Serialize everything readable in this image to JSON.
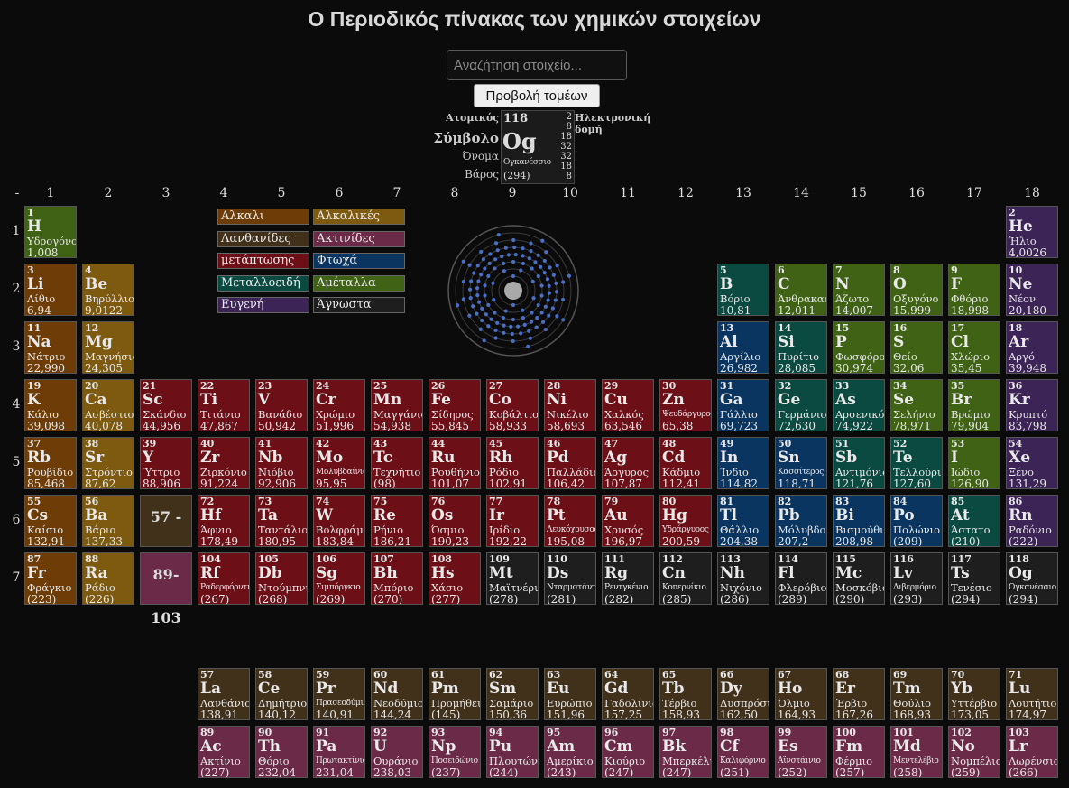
{
  "page_title": "Ο Περιοδικός πίνακας των χημικών στοιχείων",
  "search": {
    "placeholder": "Αναζήτηση στοιχείο..."
  },
  "sectors_button": "Προβολή τομέων",
  "key": {
    "label_atomic": "Ατομικός",
    "label_symbol": "Σύμβολο",
    "label_name": "Όνομα",
    "label_weight": "Βάρος",
    "label_config": "Ηλεκτρονική δομή",
    "example": {
      "number": "118",
      "symbol": "Og",
      "name": "Ογκανέσσιο",
      "weight": "(294)",
      "shells": [
        "2",
        "8",
        "18",
        "32",
        "32",
        "18",
        "8"
      ]
    }
  },
  "group_labels": [
    "-",
    "1",
    "2",
    "3",
    "4",
    "5",
    "6",
    "7",
    "8",
    "9",
    "10",
    "11",
    "12",
    "13",
    "14",
    "15",
    "16",
    "17",
    "18"
  ],
  "period_labels": [
    "1",
    "2",
    "3",
    "4",
    "5",
    "6",
    "7"
  ],
  "placeholders": {
    "lanthanides": "57 - 71",
    "actinides": "89-103"
  },
  "colors": {
    "alkali": "#6e3d07",
    "alkaline": "#7d5a10",
    "lanthanide": "#41311b",
    "actinide": "#6b2a48",
    "transition": "#6c0f17",
    "post": "#0a3560",
    "metalloid": "#0b4a41",
    "nonmetal": "#3f6214",
    "noble": "#3d2457",
    "unknown": "#1e1e1e"
  },
  "legend": [
    {
      "key": "alkali",
      "label": "Αλκαλι"
    },
    {
      "key": "alkaline",
      "label": "Αλκαλικές"
    },
    {
      "key": "lanthanide",
      "label": "Λανθανίδες"
    },
    {
      "key": "actinide",
      "label": "Ακτινίδες"
    },
    {
      "key": "transition",
      "label": "μετάπτωσης"
    },
    {
      "key": "post",
      "label": "Φτωχά"
    },
    {
      "key": "metalloid",
      "label": "Μεταλλοειδή"
    },
    {
      "key": "nonmetal",
      "label": "Αμέταλλα"
    },
    {
      "key": "noble",
      "label": "Ευγενή"
    },
    {
      "key": "unknown",
      "label": "Άγνωστα"
    }
  ],
  "elements": [
    {
      "n": "1",
      "s": "H",
      "name": "Υδρογόνο",
      "w": "1,008",
      "cat": "nonmetal"
    },
    {
      "n": "2",
      "s": "He",
      "name": "Ήλιο",
      "w": "4,0026",
      "cat": "noble"
    },
    {
      "n": "3",
      "s": "Li",
      "name": "Λίθιο",
      "w": "6,94",
      "cat": "alkali"
    },
    {
      "n": "4",
      "s": "Be",
      "name": "Βηρύλλιο",
      "w": "9,0122",
      "cat": "alkaline"
    },
    {
      "n": "5",
      "s": "B",
      "name": "Βόριο",
      "w": "10,81",
      "cat": "metalloid"
    },
    {
      "n": "6",
      "s": "C",
      "name": "Άνθρακας",
      "w": "12,011",
      "cat": "nonmetal"
    },
    {
      "n": "7",
      "s": "N",
      "name": "Άζωτο",
      "w": "14,007",
      "cat": "nonmetal"
    },
    {
      "n": "8",
      "s": "O",
      "name": "Οξυγόνο",
      "w": "15,999",
      "cat": "nonmetal"
    },
    {
      "n": "9",
      "s": "F",
      "name": "Φθόριο",
      "w": "18,998",
      "cat": "nonmetal"
    },
    {
      "n": "10",
      "s": "Ne",
      "name": "Νέον",
      "w": "20,180",
      "cat": "noble"
    },
    {
      "n": "11",
      "s": "Na",
      "name": "Νάτριο",
      "w": "22,990",
      "cat": "alkali"
    },
    {
      "n": "12",
      "s": "Mg",
      "name": "Μαγνήσιο",
      "w": "24,305",
      "cat": "alkaline"
    },
    {
      "n": "13",
      "s": "Al",
      "name": "Αργίλιο",
      "w": "26,982",
      "cat": "post"
    },
    {
      "n": "14",
      "s": "Si",
      "name": "Πυρίτιο",
      "w": "28,085",
      "cat": "metalloid"
    },
    {
      "n": "15",
      "s": "P",
      "name": "Φωσφόρος",
      "w": "30,974",
      "cat": "nonmetal"
    },
    {
      "n": "16",
      "s": "S",
      "name": "Θείο",
      "w": "32,06",
      "cat": "nonmetal"
    },
    {
      "n": "17",
      "s": "Cl",
      "name": "Χλώριο",
      "w": "35,45",
      "cat": "nonmetal"
    },
    {
      "n": "18",
      "s": "Ar",
      "name": "Αργό",
      "w": "39,948",
      "cat": "noble"
    },
    {
      "n": "19",
      "s": "K",
      "name": "Κάλιο",
      "w": "39,098",
      "cat": "alkali"
    },
    {
      "n": "20",
      "s": "Ca",
      "name": "Ασβέστιο",
      "w": "40,078",
      "cat": "alkaline"
    },
    {
      "n": "21",
      "s": "Sc",
      "name": "Σκάνδιο",
      "w": "44,956",
      "cat": "transition"
    },
    {
      "n": "22",
      "s": "Ti",
      "name": "Τιτάνιο",
      "w": "47,867",
      "cat": "transition"
    },
    {
      "n": "23",
      "s": "V",
      "name": "Βανάδιο",
      "w": "50,942",
      "cat": "transition"
    },
    {
      "n": "24",
      "s": "Cr",
      "name": "Χρώμιο",
      "w": "51,996",
      "cat": "transition"
    },
    {
      "n": "25",
      "s": "Mn",
      "name": "Μαγγάνιο",
      "w": "54,938",
      "cat": "transition"
    },
    {
      "n": "26",
      "s": "Fe",
      "name": "Σίδηρος",
      "w": "55,845",
      "cat": "transition"
    },
    {
      "n": "27",
      "s": "Co",
      "name": "Κοβάλτιο",
      "w": "58,933",
      "cat": "transition"
    },
    {
      "n": "28",
      "s": "Ni",
      "name": "Νικέλιο",
      "w": "58,693",
      "cat": "transition"
    },
    {
      "n": "29",
      "s": "Cu",
      "name": "Χαλκός",
      "w": "63,546",
      "cat": "transition"
    },
    {
      "n": "30",
      "s": "Zn",
      "name": "Ψευδάργυρος",
      "w": "65,38",
      "cat": "transition"
    },
    {
      "n": "31",
      "s": "Ga",
      "name": "Γάλλιο",
      "w": "69,723",
      "cat": "post"
    },
    {
      "n": "32",
      "s": "Ge",
      "name": "Γερμάνιο",
      "w": "72,630",
      "cat": "metalloid"
    },
    {
      "n": "33",
      "s": "As",
      "name": "Αρσενικό",
      "w": "74,922",
      "cat": "metalloid"
    },
    {
      "n": "34",
      "s": "Se",
      "name": "Σελήνιο",
      "w": "78,971",
      "cat": "nonmetal"
    },
    {
      "n": "35",
      "s": "Br",
      "name": "Βρώμιο",
      "w": "79,904",
      "cat": "nonmetal"
    },
    {
      "n": "36",
      "s": "Kr",
      "name": "Κρυπτό",
      "w": "83,798",
      "cat": "noble"
    },
    {
      "n": "37",
      "s": "Rb",
      "name": "Ρουβίδιο",
      "w": "85,468",
      "cat": "alkali"
    },
    {
      "n": "38",
      "s": "Sr",
      "name": "Στρόντιο",
      "w": "87,62",
      "cat": "alkaline"
    },
    {
      "n": "39",
      "s": "Y",
      "name": "Ύττριο",
      "w": "88,906",
      "cat": "transition"
    },
    {
      "n": "40",
      "s": "Zr",
      "name": "Ζιρκόνιο",
      "w": "91,224",
      "cat": "transition"
    },
    {
      "n": "41",
      "s": "Nb",
      "name": "Νιόβιο",
      "w": "92,906",
      "cat": "transition"
    },
    {
      "n": "42",
      "s": "Mo",
      "name": "Μολυβδαίνιο",
      "w": "95,95",
      "cat": "transition"
    },
    {
      "n": "43",
      "s": "Tc",
      "name": "Τεχνήτιο",
      "w": "(98)",
      "cat": "transition"
    },
    {
      "n": "44",
      "s": "Ru",
      "name": "Ρουθήνιο",
      "w": "101,07",
      "cat": "transition"
    },
    {
      "n": "45",
      "s": "Rh",
      "name": "Ρόδιο",
      "w": "102,91",
      "cat": "transition"
    },
    {
      "n": "46",
      "s": "Pd",
      "name": "Παλλάδιο",
      "w": "106,42",
      "cat": "transition"
    },
    {
      "n": "47",
      "s": "Ag",
      "name": "Άργυρος",
      "w": "107,87",
      "cat": "transition"
    },
    {
      "n": "48",
      "s": "Cd",
      "name": "Κάδμιο",
      "w": "112,41",
      "cat": "transition"
    },
    {
      "n": "49",
      "s": "In",
      "name": "Ίνδιο",
      "w": "114,82",
      "cat": "post"
    },
    {
      "n": "50",
      "s": "Sn",
      "name": "Κασσίτερος",
      "w": "118,71",
      "cat": "post"
    },
    {
      "n": "51",
      "s": "Sb",
      "name": "Αντιμόνιο",
      "w": "121,76",
      "cat": "metalloid"
    },
    {
      "n": "52",
      "s": "Te",
      "name": "Τελλούριο",
      "w": "127,60",
      "cat": "metalloid"
    },
    {
      "n": "53",
      "s": "I",
      "name": "Ιώδιο",
      "w": "126,90",
      "cat": "nonmetal"
    },
    {
      "n": "54",
      "s": "Xe",
      "name": "Ξένο",
      "w": "131,29",
      "cat": "noble"
    },
    {
      "n": "55",
      "s": "Cs",
      "name": "Καίσιο",
      "w": "132,91",
      "cat": "alkali"
    },
    {
      "n": "56",
      "s": "Ba",
      "name": "Βάριο",
      "w": "137,33",
      "cat": "alkaline"
    },
    {
      "n": "72",
      "s": "Hf",
      "name": "Άφνιο",
      "w": "178,49",
      "cat": "transition"
    },
    {
      "n": "73",
      "s": "Ta",
      "name": "Ταντάλιο",
      "w": "180,95",
      "cat": "transition"
    },
    {
      "n": "74",
      "s": "W",
      "name": "Βολφράμιο",
      "w": "183,84",
      "cat": "transition"
    },
    {
      "n": "75",
      "s": "Re",
      "name": "Ρήνιο",
      "w": "186,21",
      "cat": "transition"
    },
    {
      "n": "76",
      "s": "Os",
      "name": "Όσμιο",
      "w": "190,23",
      "cat": "transition"
    },
    {
      "n": "77",
      "s": "Ir",
      "name": "Ιρίδιο",
      "w": "192,22",
      "cat": "transition"
    },
    {
      "n": "78",
      "s": "Pt",
      "name": "Λευκόχρυσος",
      "w": "195,08",
      "cat": "transition"
    },
    {
      "n": "79",
      "s": "Au",
      "name": "Χρυσός",
      "w": "196,97",
      "cat": "transition"
    },
    {
      "n": "80",
      "s": "Hg",
      "name": "Υδράργυρος",
      "w": "200,59",
      "cat": "transition"
    },
    {
      "n": "81",
      "s": "Tl",
      "name": "Θάλλιο",
      "w": "204,38",
      "cat": "post"
    },
    {
      "n": "82",
      "s": "Pb",
      "name": "Μόλυβδος",
      "w": "207,2",
      "cat": "post"
    },
    {
      "n": "83",
      "s": "Bi",
      "name": "Βισμούθιο",
      "w": "208,98",
      "cat": "post"
    },
    {
      "n": "84",
      "s": "Po",
      "name": "Πολώνιο",
      "w": "(209)",
      "cat": "post"
    },
    {
      "n": "85",
      "s": "At",
      "name": "Άστατο",
      "w": "(210)",
      "cat": "metalloid"
    },
    {
      "n": "86",
      "s": "Rn",
      "name": "Ραδόνιο",
      "w": "(222)",
      "cat": "noble"
    },
    {
      "n": "87",
      "s": "Fr",
      "name": "Φράγκιο",
      "w": "(223)",
      "cat": "alkali"
    },
    {
      "n": "88",
      "s": "Ra",
      "name": "Ράδιο",
      "w": "(226)",
      "cat": "alkaline"
    },
    {
      "n": "104",
      "s": "Rf",
      "name": "Ραδερφόρντιο",
      "w": "(267)",
      "cat": "transition"
    },
    {
      "n": "105",
      "s": "Db",
      "name": "Ντούμπνιο",
      "w": "(268)",
      "cat": "transition"
    },
    {
      "n": "106",
      "s": "Sg",
      "name": "Σιμπόργκιο",
      "w": "(269)",
      "cat": "transition"
    },
    {
      "n": "107",
      "s": "Bh",
      "name": "Μπόριο",
      "w": "(270)",
      "cat": "transition"
    },
    {
      "n": "108",
      "s": "Hs",
      "name": "Χάσιο",
      "w": "(277)",
      "cat": "transition"
    },
    {
      "n": "109",
      "s": "Mt",
      "name": "Μαϊτνέριο",
      "w": "(278)",
      "cat": "unknown"
    },
    {
      "n": "110",
      "s": "Ds",
      "name": "Νταρμστάντιο",
      "w": "(281)",
      "cat": "unknown"
    },
    {
      "n": "111",
      "s": "Rg",
      "name": "Ρεντγκένιο",
      "w": "(282)",
      "cat": "unknown"
    },
    {
      "n": "112",
      "s": "Cn",
      "name": "Κοπερνίκιο",
      "w": "(285)",
      "cat": "unknown"
    },
    {
      "n": "113",
      "s": "Nh",
      "name": "Νιχόνιο",
      "w": "(286)",
      "cat": "unknown"
    },
    {
      "n": "114",
      "s": "Fl",
      "name": "Φλερόβιο",
      "w": "(289)",
      "cat": "unknown"
    },
    {
      "n": "115",
      "s": "Mc",
      "name": "Μοσκόβιο",
      "w": "(290)",
      "cat": "unknown"
    },
    {
      "n": "116",
      "s": "Lv",
      "name": "Λιβερμόριο",
      "w": "(293)",
      "cat": "unknown"
    },
    {
      "n": "117",
      "s": "Ts",
      "name": "Τενέσιο",
      "w": "(294)",
      "cat": "unknown"
    },
    {
      "n": "118",
      "s": "Og",
      "name": "Ογκανέσσιο",
      "w": "(294)",
      "cat": "unknown"
    },
    {
      "n": "57",
      "s": "La",
      "name": "Λανθάνιο",
      "w": "138,91",
      "cat": "lanthanide"
    },
    {
      "n": "58",
      "s": "Ce",
      "name": "Δημήτριο",
      "w": "140,12",
      "cat": "lanthanide"
    },
    {
      "n": "59",
      "s": "Pr",
      "name": "Πρασεοδύμιο",
      "w": "140,91",
      "cat": "lanthanide"
    },
    {
      "n": "60",
      "s": "Nd",
      "name": "Νεοδύμιο",
      "w": "144,24",
      "cat": "lanthanide"
    },
    {
      "n": "61",
      "s": "Pm",
      "name": "Προμήθειο",
      "w": "(145)",
      "cat": "lanthanide"
    },
    {
      "n": "62",
      "s": "Sm",
      "name": "Σαμάριο",
      "w": "150,36",
      "cat": "lanthanide"
    },
    {
      "n": "63",
      "s": "Eu",
      "name": "Ευρώπιο",
      "w": "151,96",
      "cat": "lanthanide"
    },
    {
      "n": "64",
      "s": "Gd",
      "name": "Γαδολίνιο",
      "w": "157,25",
      "cat": "lanthanide"
    },
    {
      "n": "65",
      "s": "Tb",
      "name": "Τέρβιο",
      "w": "158,93",
      "cat": "lanthanide"
    },
    {
      "n": "66",
      "s": "Dy",
      "name": "Δυσπρόσιο",
      "w": "162,50",
      "cat": "lanthanide"
    },
    {
      "n": "67",
      "s": "Ho",
      "name": "Όλμιο",
      "w": "164,93",
      "cat": "lanthanide"
    },
    {
      "n": "68",
      "s": "Er",
      "name": "Έρβιο",
      "w": "167,26",
      "cat": "lanthanide"
    },
    {
      "n": "69",
      "s": "Tm",
      "name": "Θούλιο",
      "w": "168,93",
      "cat": "lanthanide"
    },
    {
      "n": "70",
      "s": "Yb",
      "name": "Υττέρβιο",
      "w": "173,05",
      "cat": "lanthanide"
    },
    {
      "n": "71",
      "s": "Lu",
      "name": "Λουτήτιο",
      "w": "174,97",
      "cat": "lanthanide"
    },
    {
      "n": "89",
      "s": "Ac",
      "name": "Ακτίνιο",
      "w": "(227)",
      "cat": "actinide"
    },
    {
      "n": "90",
      "s": "Th",
      "name": "Θόριο",
      "w": "232,04",
      "cat": "actinide"
    },
    {
      "n": "91",
      "s": "Pa",
      "name": "Πρωτακτίνιο",
      "w": "231,04",
      "cat": "actinide"
    },
    {
      "n": "92",
      "s": "U",
      "name": "Ουράνιο",
      "w": "238,03",
      "cat": "actinide"
    },
    {
      "n": "93",
      "s": "Np",
      "name": "Ποσειδώνιο",
      "w": "(237)",
      "cat": "actinide"
    },
    {
      "n": "94",
      "s": "Pu",
      "name": "Πλουτώνιο",
      "w": "(244)",
      "cat": "actinide"
    },
    {
      "n": "95",
      "s": "Am",
      "name": "Αμερίκιο",
      "w": "(243)",
      "cat": "actinide"
    },
    {
      "n": "96",
      "s": "Cm",
      "name": "Κιούριο",
      "w": "(247)",
      "cat": "actinide"
    },
    {
      "n": "97",
      "s": "Bk",
      "name": "Μπερκέλιο",
      "w": "(247)",
      "cat": "actinide"
    },
    {
      "n": "98",
      "s": "Cf",
      "name": "Καλιφόρνιο",
      "w": "(251)",
      "cat": "actinide"
    },
    {
      "n": "99",
      "s": "Es",
      "name": "Αϊνστάινιο",
      "w": "(252)",
      "cat": "actinide"
    },
    {
      "n": "100",
      "s": "Fm",
      "name": "Φέρμιο",
      "w": "(257)",
      "cat": "actinide"
    },
    {
      "n": "101",
      "s": "Md",
      "name": "Μεντελέβιο",
      "w": "(258)",
      "cat": "actinide"
    },
    {
      "n": "102",
      "s": "No",
      "name": "Νομπέλιο",
      "w": "(259)",
      "cat": "actinide"
    },
    {
      "n": "103",
      "s": "Lr",
      "name": "Λωρένσιο",
      "w": "(266)",
      "cat": "actinide"
    }
  ]
}
